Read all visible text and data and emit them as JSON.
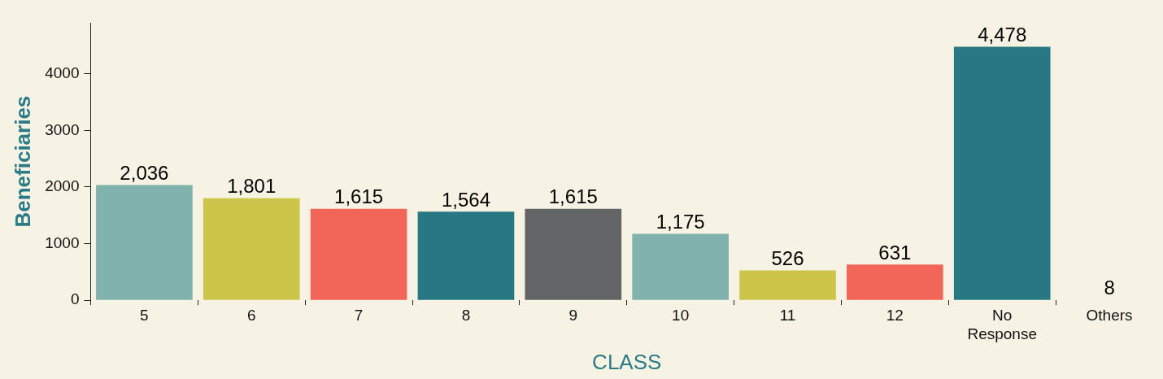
{
  "chart_data": {
    "type": "bar",
    "xlabel": "CLASS",
    "ylabel": "Beneficiaries",
    "categories": [
      "5",
      "6",
      "7",
      "8",
      "9",
      "10",
      "11",
      "12",
      "No Response",
      "Others"
    ],
    "values": [
      2036,
      1801,
      1615,
      1564,
      1615,
      1175,
      526,
      631,
      4478,
      8
    ],
    "colors": [
      "#82b2ae",
      "#cdc54a",
      "#f2665a",
      "#287884",
      "#636466",
      "#82b2ae",
      "#cdc54a",
      "#f2665a",
      "#287884",
      "#a9a9a0"
    ],
    "value_labels": [
      "2,036",
      "1,801",
      "1,615",
      "1,564",
      "1,615",
      "1,175",
      "526",
      "631",
      "4,478",
      "8"
    ],
    "ylim": [
      0,
      4900
    ],
    "yticks": [
      0,
      1000,
      2000,
      3000,
      4000
    ],
    "grid": false,
    "legend": false
  }
}
